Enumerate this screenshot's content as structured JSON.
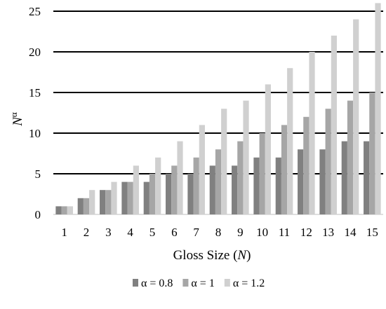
{
  "chart_data": {
    "type": "bar",
    "title": "",
    "xlabel_prefix": "Gloss Size (",
    "xlabel_var": "N",
    "xlabel_suffix": ")",
    "ylabel_base": "N",
    "ylabel_sup": "α",
    "categories": [
      "1",
      "2",
      "3",
      "4",
      "5",
      "6",
      "7",
      "8",
      "9",
      "10",
      "11",
      "12",
      "13",
      "14",
      "15"
    ],
    "ylim": [
      0,
      25
    ],
    "yticks": [
      0,
      5,
      10,
      15,
      20,
      25
    ],
    "grid": true,
    "legend_position": "bottom",
    "series": [
      {
        "name": "α = 0.8",
        "color": "#808080",
        "values": [
          1,
          2,
          3,
          4,
          4,
          5,
          5,
          6,
          6,
          7,
          7,
          8,
          8,
          9,
          9
        ]
      },
      {
        "name": "α = 1",
        "color": "#a6a6a6",
        "values": [
          1,
          2,
          3,
          4,
          5,
          6,
          7,
          8,
          9,
          10,
          11,
          12,
          13,
          14,
          15
        ]
      },
      {
        "name": "α = 1.2",
        "color": "#d0d0d0",
        "values": [
          1,
          3,
          4,
          6,
          7,
          9,
          11,
          13,
          14,
          16,
          18,
          20,
          22,
          24,
          26
        ]
      }
    ]
  }
}
